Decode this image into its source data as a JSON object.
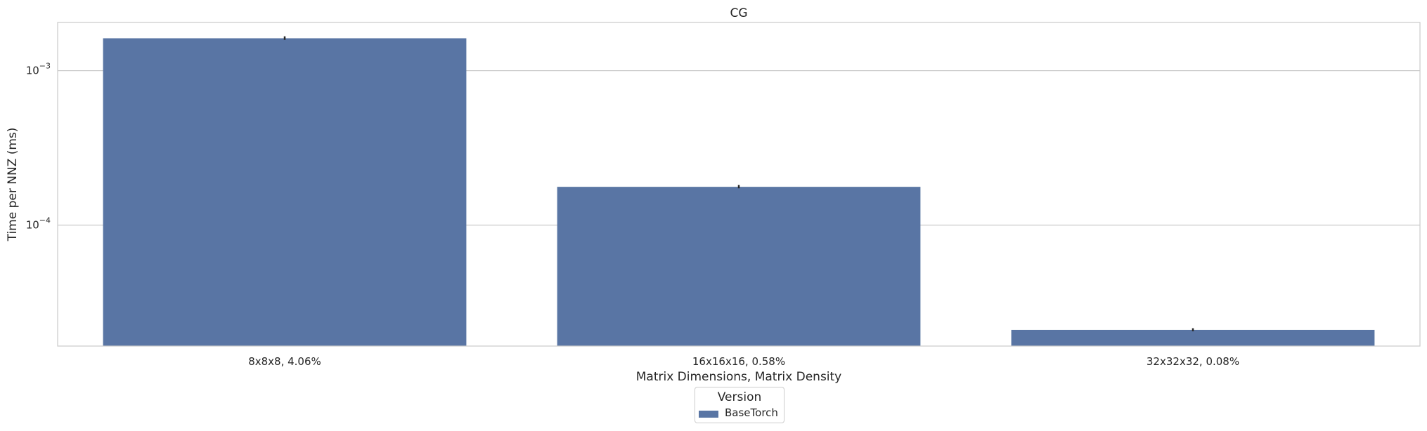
{
  "colors": {
    "bar": "#5975a4",
    "grid": "#cccccc",
    "error": "#262626"
  },
  "chart_data": {
    "type": "bar",
    "title": "CG",
    "xlabel": "Matrix Dimensions, Matrix Density",
    "ylabel": "Time per NNZ (ms)",
    "yscale": "log",
    "ylim": [
      1.65e-05,
      0.00205
    ],
    "categories": [
      "8x8x8, 4.06%",
      "16x16x16, 0.58%",
      "32x32x32, 0.08%"
    ],
    "series": [
      {
        "name": "BaseTorch",
        "values": [
          0.00162,
          0.000177,
          2.1e-05
        ],
        "error_low": [
          0.0016,
          0.000175,
          2.08e-05
        ],
        "error_high": [
          0.00165,
          0.00018,
          2.13e-05
        ]
      }
    ],
    "yticks": [
      {
        "value": 0.001,
        "base": "10",
        "exp": "−3"
      },
      {
        "value": 0.0001,
        "base": "10",
        "exp": "−4"
      }
    ],
    "grid": true,
    "legend": {
      "title": "Version",
      "placement": "bottom-center"
    }
  }
}
